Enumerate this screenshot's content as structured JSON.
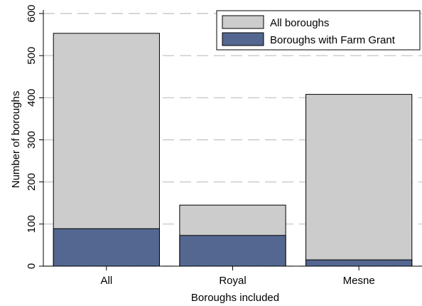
{
  "chart_data": {
    "type": "bar",
    "stacking": "overlay",
    "categories": [
      "All",
      "Royal",
      "Mesne"
    ],
    "series": [
      {
        "name": "All boroughs",
        "color": "#cccccc",
        "values": [
          553,
          145,
          408
        ]
      },
      {
        "name": "Boroughs with Farm Grant",
        "color": "#536790",
        "values": [
          89,
          73,
          15
        ]
      }
    ],
    "xlabel": "Boroughs included",
    "ylabel": "Number of boroughs",
    "ylim": [
      0,
      600
    ],
    "yticks": [
      0,
      100,
      200,
      300,
      400,
      500,
      600
    ],
    "grid": "horizontal-dashed",
    "legend_position": "top-right"
  }
}
